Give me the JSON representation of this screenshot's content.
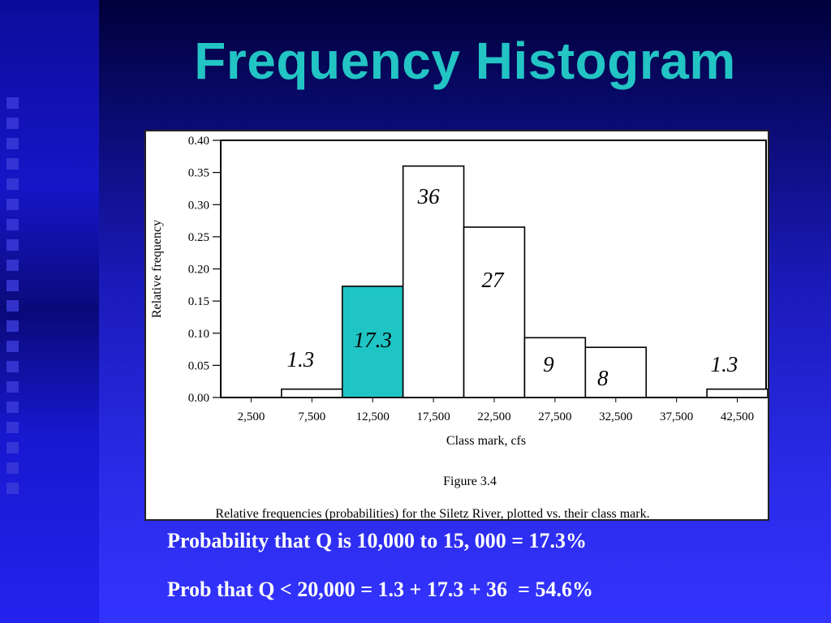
{
  "slide": {
    "title": "Frequency Histogram",
    "line1": "Probability that Q is 10,000 to 15, 000 = 17.3%",
    "line2": "Prob that Q < 20,000 = 1.3 + 17.3 + 36  = 54.6%"
  },
  "colors": {
    "title": "#22c4c4",
    "highlight_bar": "#1fc4c4",
    "bar": "#ffffff",
    "background": "#1a1ab8"
  },
  "chart_data": {
    "type": "bar",
    "categories": [
      "2,500",
      "7,500",
      "12,500",
      "17,500",
      "22,500",
      "27,500",
      "32,500",
      "37,500",
      "42,500"
    ],
    "values": [
      0.0,
      0.013,
      0.173,
      0.36,
      0.265,
      0.093,
      0.078,
      0.0,
      0.013
    ],
    "bar_labels": [
      "",
      "1.3",
      "17.3",
      "36",
      "27",
      "9",
      "8",
      "",
      "1.3"
    ],
    "highlight_index": 2,
    "xlabel": "Class mark, cfs",
    "ylabel": "Relative frequency",
    "ylim": [
      0,
      0.4
    ],
    "yticks": [
      "0.00",
      "0.05",
      "0.10",
      "0.15",
      "0.20",
      "0.25",
      "0.30",
      "0.35",
      "0.40"
    ],
    "figure_label": "Figure 3.4",
    "caption": "Relative frequencies (probabilities) for the Siletz River, plotted vs. their class mark."
  }
}
